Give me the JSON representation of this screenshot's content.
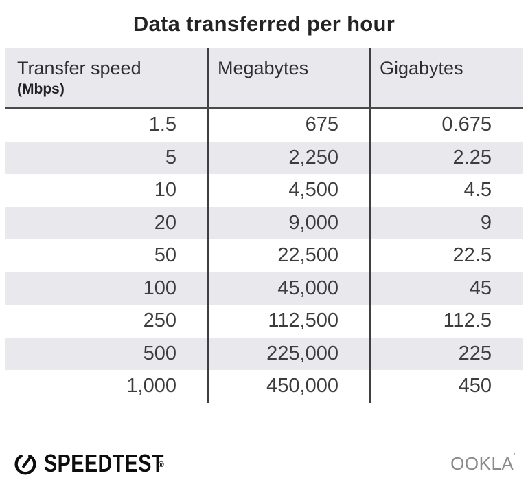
{
  "title": "Data transferred per hour",
  "table": {
    "columns": [
      {
        "label": "Transfer speed",
        "sublabel": "(Mbps)"
      },
      {
        "label": "Megabytes"
      },
      {
        "label": "Gigabytes"
      }
    ],
    "rows": [
      [
        "1.5",
        "675",
        "0.675"
      ],
      [
        "5",
        "2,250",
        "2.25"
      ],
      [
        "10",
        "4,500",
        "4.5"
      ],
      [
        "20",
        "9,000",
        "9"
      ],
      [
        "50",
        "22,500",
        "22.5"
      ],
      [
        "100",
        "45,000",
        "45"
      ],
      [
        "250",
        "112,500",
        "112.5"
      ],
      [
        "500",
        "225,000",
        "225"
      ],
      [
        "1,000",
        "450,000",
        "450"
      ]
    ]
  },
  "chart_data": {
    "type": "table",
    "title": "Data transferred per hour",
    "columns": [
      "Transfer speed (Mbps)",
      "Megabytes",
      "Gigabytes"
    ],
    "rows": [
      [
        1.5,
        675,
        0.675
      ],
      [
        5,
        2250,
        2.25
      ],
      [
        10,
        4500,
        4.5
      ],
      [
        20,
        9000,
        9
      ],
      [
        50,
        22500,
        22.5
      ],
      [
        100,
        45000,
        45
      ],
      [
        250,
        112500,
        112.5
      ],
      [
        500,
        225000,
        225
      ],
      [
        1000,
        450000,
        450
      ]
    ]
  },
  "footer": {
    "speedtest_label": "SPEEDTEST",
    "speedtest_reg_mark": "®",
    "ookla_label": "OOKLA",
    "ookla_tm_mark": "’"
  },
  "colors": {
    "stripe": "#e9e8ec",
    "header_bg": "#e9e8ec",
    "divider": "#3f3f3f",
    "header_border": "#4a4a4a",
    "title_text": "#232323",
    "cell_text": "#3c3c3c",
    "ookla_gray": "#8a8a8a"
  }
}
